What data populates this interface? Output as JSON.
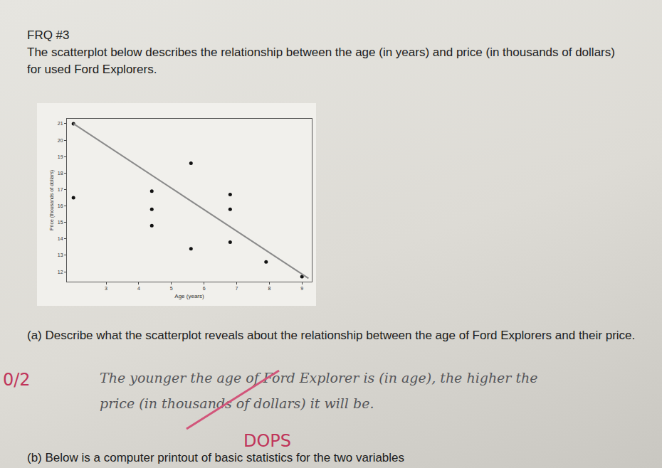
{
  "header": "FRQ #3",
  "intro": "The scatterplot below describes the relationship between the age (in years) and price (in thousands of dollars) for used Ford Explorers.",
  "chart_data": {
    "type": "scatter",
    "x_label": "Age (years)",
    "y_label": "Price (thousands of dollars)",
    "series": [
      {
        "type": "scatter",
        "marker": "circle",
        "color": "#111111",
        "x": [
          2.0,
          5.6,
          2.0,
          4.4,
          4.4,
          4.4,
          6.8,
          6.8,
          5.6,
          6.8,
          7.9,
          9.0
        ],
        "values": [
          21.0,
          18.6,
          16.5,
          16.9,
          15.8,
          14.8,
          16.7,
          15.8,
          13.4,
          13.8,
          12.6,
          11.7
        ]
      },
      {
        "type": "line",
        "line_style": "solid",
        "color": "#8a8a8a",
        "x": [
          2.0,
          9.2
        ],
        "values": [
          21.0,
          11.6
        ]
      }
    ],
    "xlim": [
      1.8,
      9.3
    ],
    "xticks": [
      3,
      4,
      5,
      6,
      7,
      8,
      9
    ],
    "ylim": [
      11.4,
      21.3
    ],
    "yticks": [
      12,
      13,
      14,
      15,
      16,
      17,
      18,
      19,
      20,
      21
    ],
    "grid": false
  },
  "question_a": "(a) Describe what the scatterplot reveals about the relationship between the age of Ford Explorers and their price.",
  "score": "0/2",
  "answer": [
    "The younger the age of Ford Explorer is (in age), the higher the",
    "price (in thousands of dollars) it will be."
  ],
  "grader_note": "DOPS",
  "question_b": "(b) Below is a computer printout of basic statistics for the two variables"
}
